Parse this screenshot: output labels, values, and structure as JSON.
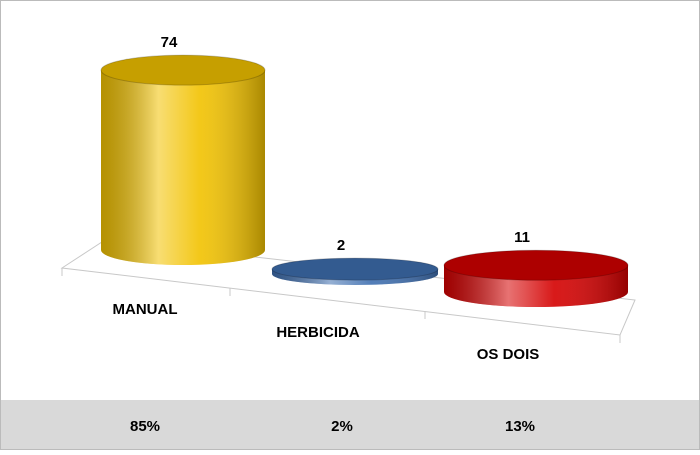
{
  "chart_data": {
    "type": "cylinder",
    "categories": [
      "MANUAL",
      "HERBICIDA",
      "OS DOIS"
    ],
    "values": [
      74,
      2,
      11
    ],
    "colors": [
      "#f2c200",
      "#3f6fb0",
      "#d40000"
    ],
    "percentages": {
      "values": [
        85,
        2,
        13
      ],
      "value_labels": [
        "85%",
        "2%",
        "13%"
      ]
    }
  }
}
